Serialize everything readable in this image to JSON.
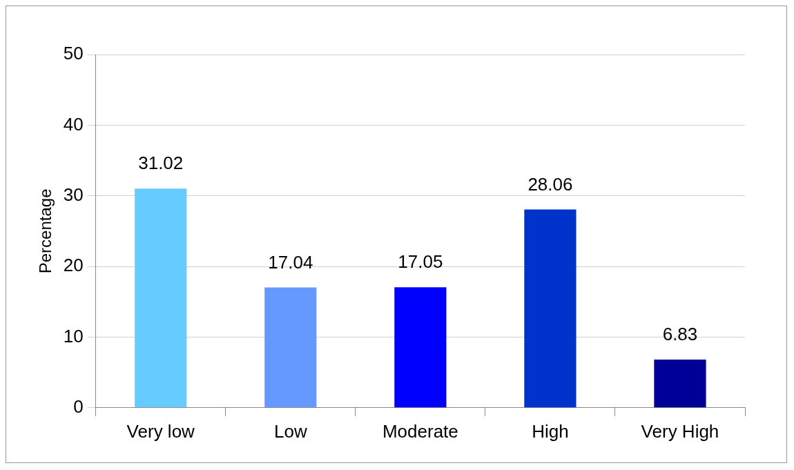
{
  "chart_data": {
    "type": "bar",
    "ylabel": "Percentage",
    "categories": [
      "Very low",
      "Low",
      "Moderate",
      "High",
      "Very High"
    ],
    "values": [
      31.02,
      17.04,
      17.05,
      28.06,
      6.83
    ],
    "colors": [
      "#66ccff",
      "#6699ff",
      "#0000ff",
      "#0033cc",
      "#000099"
    ],
    "ylim": [
      0,
      50
    ],
    "yticks": [
      0,
      10,
      20,
      30,
      40,
      50
    ],
    "grid": "y",
    "data_labels": true
  }
}
